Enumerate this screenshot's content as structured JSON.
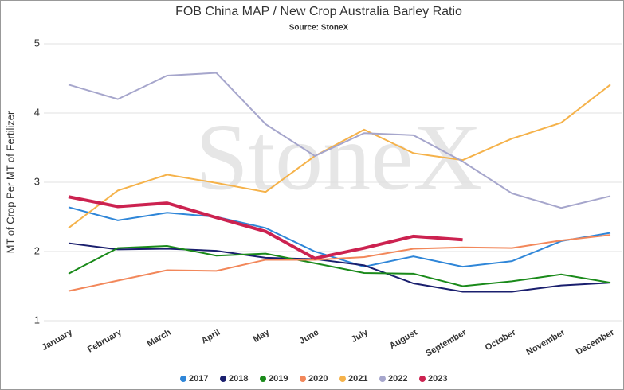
{
  "chart_data": {
    "type": "line",
    "title": "FOB China MAP / New Crop Australia Barley Ratio",
    "subtitle": "Source: StoneX",
    "watermark": "StoneX",
    "y_label": "MT of Crop Per MT of Fertilizer",
    "categories": [
      "January",
      "February",
      "March",
      "April",
      "May",
      "June",
      "July",
      "August",
      "September",
      "October",
      "November",
      "December"
    ],
    "ylim": [
      1,
      5
    ],
    "yticks": [
      1,
      2,
      3,
      4,
      5
    ],
    "grid": true,
    "legend": "bottom",
    "series": [
      {
        "name": "2017",
        "color": "#2f86d8",
        "values": [
          2.64,
          2.45,
          2.56,
          2.5,
          2.34,
          2.0,
          1.78,
          1.93,
          1.78,
          1.86,
          2.15,
          2.27
        ]
      },
      {
        "name": "2018",
        "color": "#1a1f6e",
        "values": [
          2.12,
          2.03,
          2.04,
          2.01,
          1.91,
          1.89,
          1.8,
          1.54,
          1.42,
          1.42,
          1.51,
          1.55
        ]
      },
      {
        "name": "2019",
        "color": "#1a8a1a",
        "values": [
          1.68,
          2.05,
          2.08,
          1.94,
          1.97,
          1.83,
          1.69,
          1.68,
          1.5,
          1.57,
          1.67,
          1.55
        ]
      },
      {
        "name": "2020",
        "color": "#f2875a",
        "values": [
          1.43,
          1.58,
          1.73,
          1.72,
          1.88,
          1.88,
          1.92,
          2.04,
          2.06,
          2.05,
          2.16,
          2.24
        ]
      },
      {
        "name": "2021",
        "color": "#f5b24a",
        "values": [
          2.34,
          2.88,
          3.11,
          2.99,
          2.86,
          3.38,
          3.76,
          3.42,
          3.32,
          3.63,
          3.86,
          4.41
        ]
      },
      {
        "name": "2022",
        "color": "#a6a6cc",
        "values": [
          4.41,
          4.2,
          4.54,
          4.58,
          3.84,
          3.38,
          3.71,
          3.68,
          3.3,
          2.84,
          2.63,
          2.8
        ]
      },
      {
        "name": "2023",
        "color": "#cc2250",
        "values": [
          2.79,
          2.65,
          2.7,
          2.49,
          2.29,
          1.9,
          2.05,
          2.22,
          2.17,
          null,
          null,
          null
        ]
      }
    ]
  }
}
